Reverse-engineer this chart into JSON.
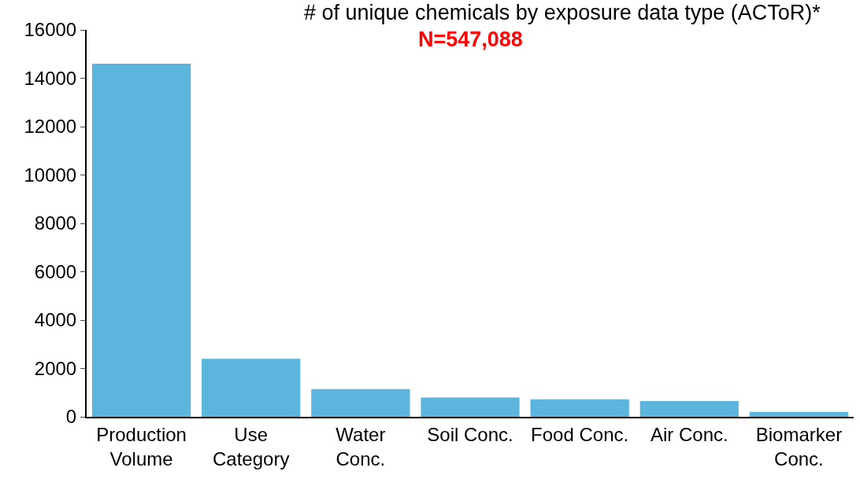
{
  "chart_data": {
    "type": "bar",
    "title": "# of unique chemicals by exposure data type (ACToR)*",
    "subtitle": "N=547,088",
    "categories": [
      "Production\nVolume",
      "Use\nCategory",
      "Water\nConc.",
      "Soil Conc.",
      "Food Conc.",
      "Air Conc.",
      "Biomarker\nConc."
    ],
    "values": [
      14600,
      2400,
      1150,
      800,
      720,
      650,
      200
    ],
    "color": "#5bb5dc",
    "ylim": [
      0,
      16000
    ],
    "yticks": [
      0,
      2000,
      4000,
      6000,
      8000,
      10000,
      12000,
      14000,
      16000
    ]
  }
}
